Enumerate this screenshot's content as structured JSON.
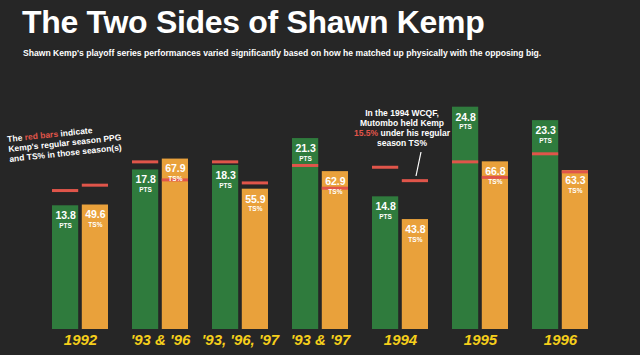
{
  "chart_data": {
    "type": "bar",
    "title": "The Two Sides of Shawn Kemp",
    "subtitle": "Shawn Kemp's playoff series performances varied significantly based on how he matched up physically with the opposing big.",
    "categories": [
      "1992",
      "'93 & '96",
      "'93, '96, '97",
      "'93 & '97",
      "1994",
      "1995",
      "1996"
    ],
    "series": [
      {
        "name": "PTS",
        "color": "#2f7b3d",
        "values": [
          13.8,
          17.8,
          18.3,
          21.3,
          14.8,
          24.8,
          23.3
        ],
        "regular_season": [
          15.5,
          18.7,
          18.7,
          18.3,
          18.1,
          18.7,
          19.6
        ]
      },
      {
        "name": "TS%",
        "color": "#e9a13b",
        "axis": "y2",
        "values": [
          49.6,
          67.9,
          55.9,
          62.9,
          43.8,
          66.8,
          63.3
        ],
        "regular_season": [
          57.5,
          59.6,
          58.4,
          56.3,
          59.3,
          60.6,
          62.8
        ]
      }
    ],
    "ylim": [
      0,
      28
    ],
    "y2lim": [
      0,
      100
    ],
    "data_labels": true,
    "tick_labels": "x",
    "annotations": [
      {
        "text": "The red bars indicate Kemp's regular season PPG and TS% in those season(s)",
        "highlight": "red bars"
      },
      {
        "text": "In the 1994 WCQF, Mutombo held Kemp 15.5% under his regular season TS%",
        "highlight": "15.5%"
      }
    ]
  }
}
